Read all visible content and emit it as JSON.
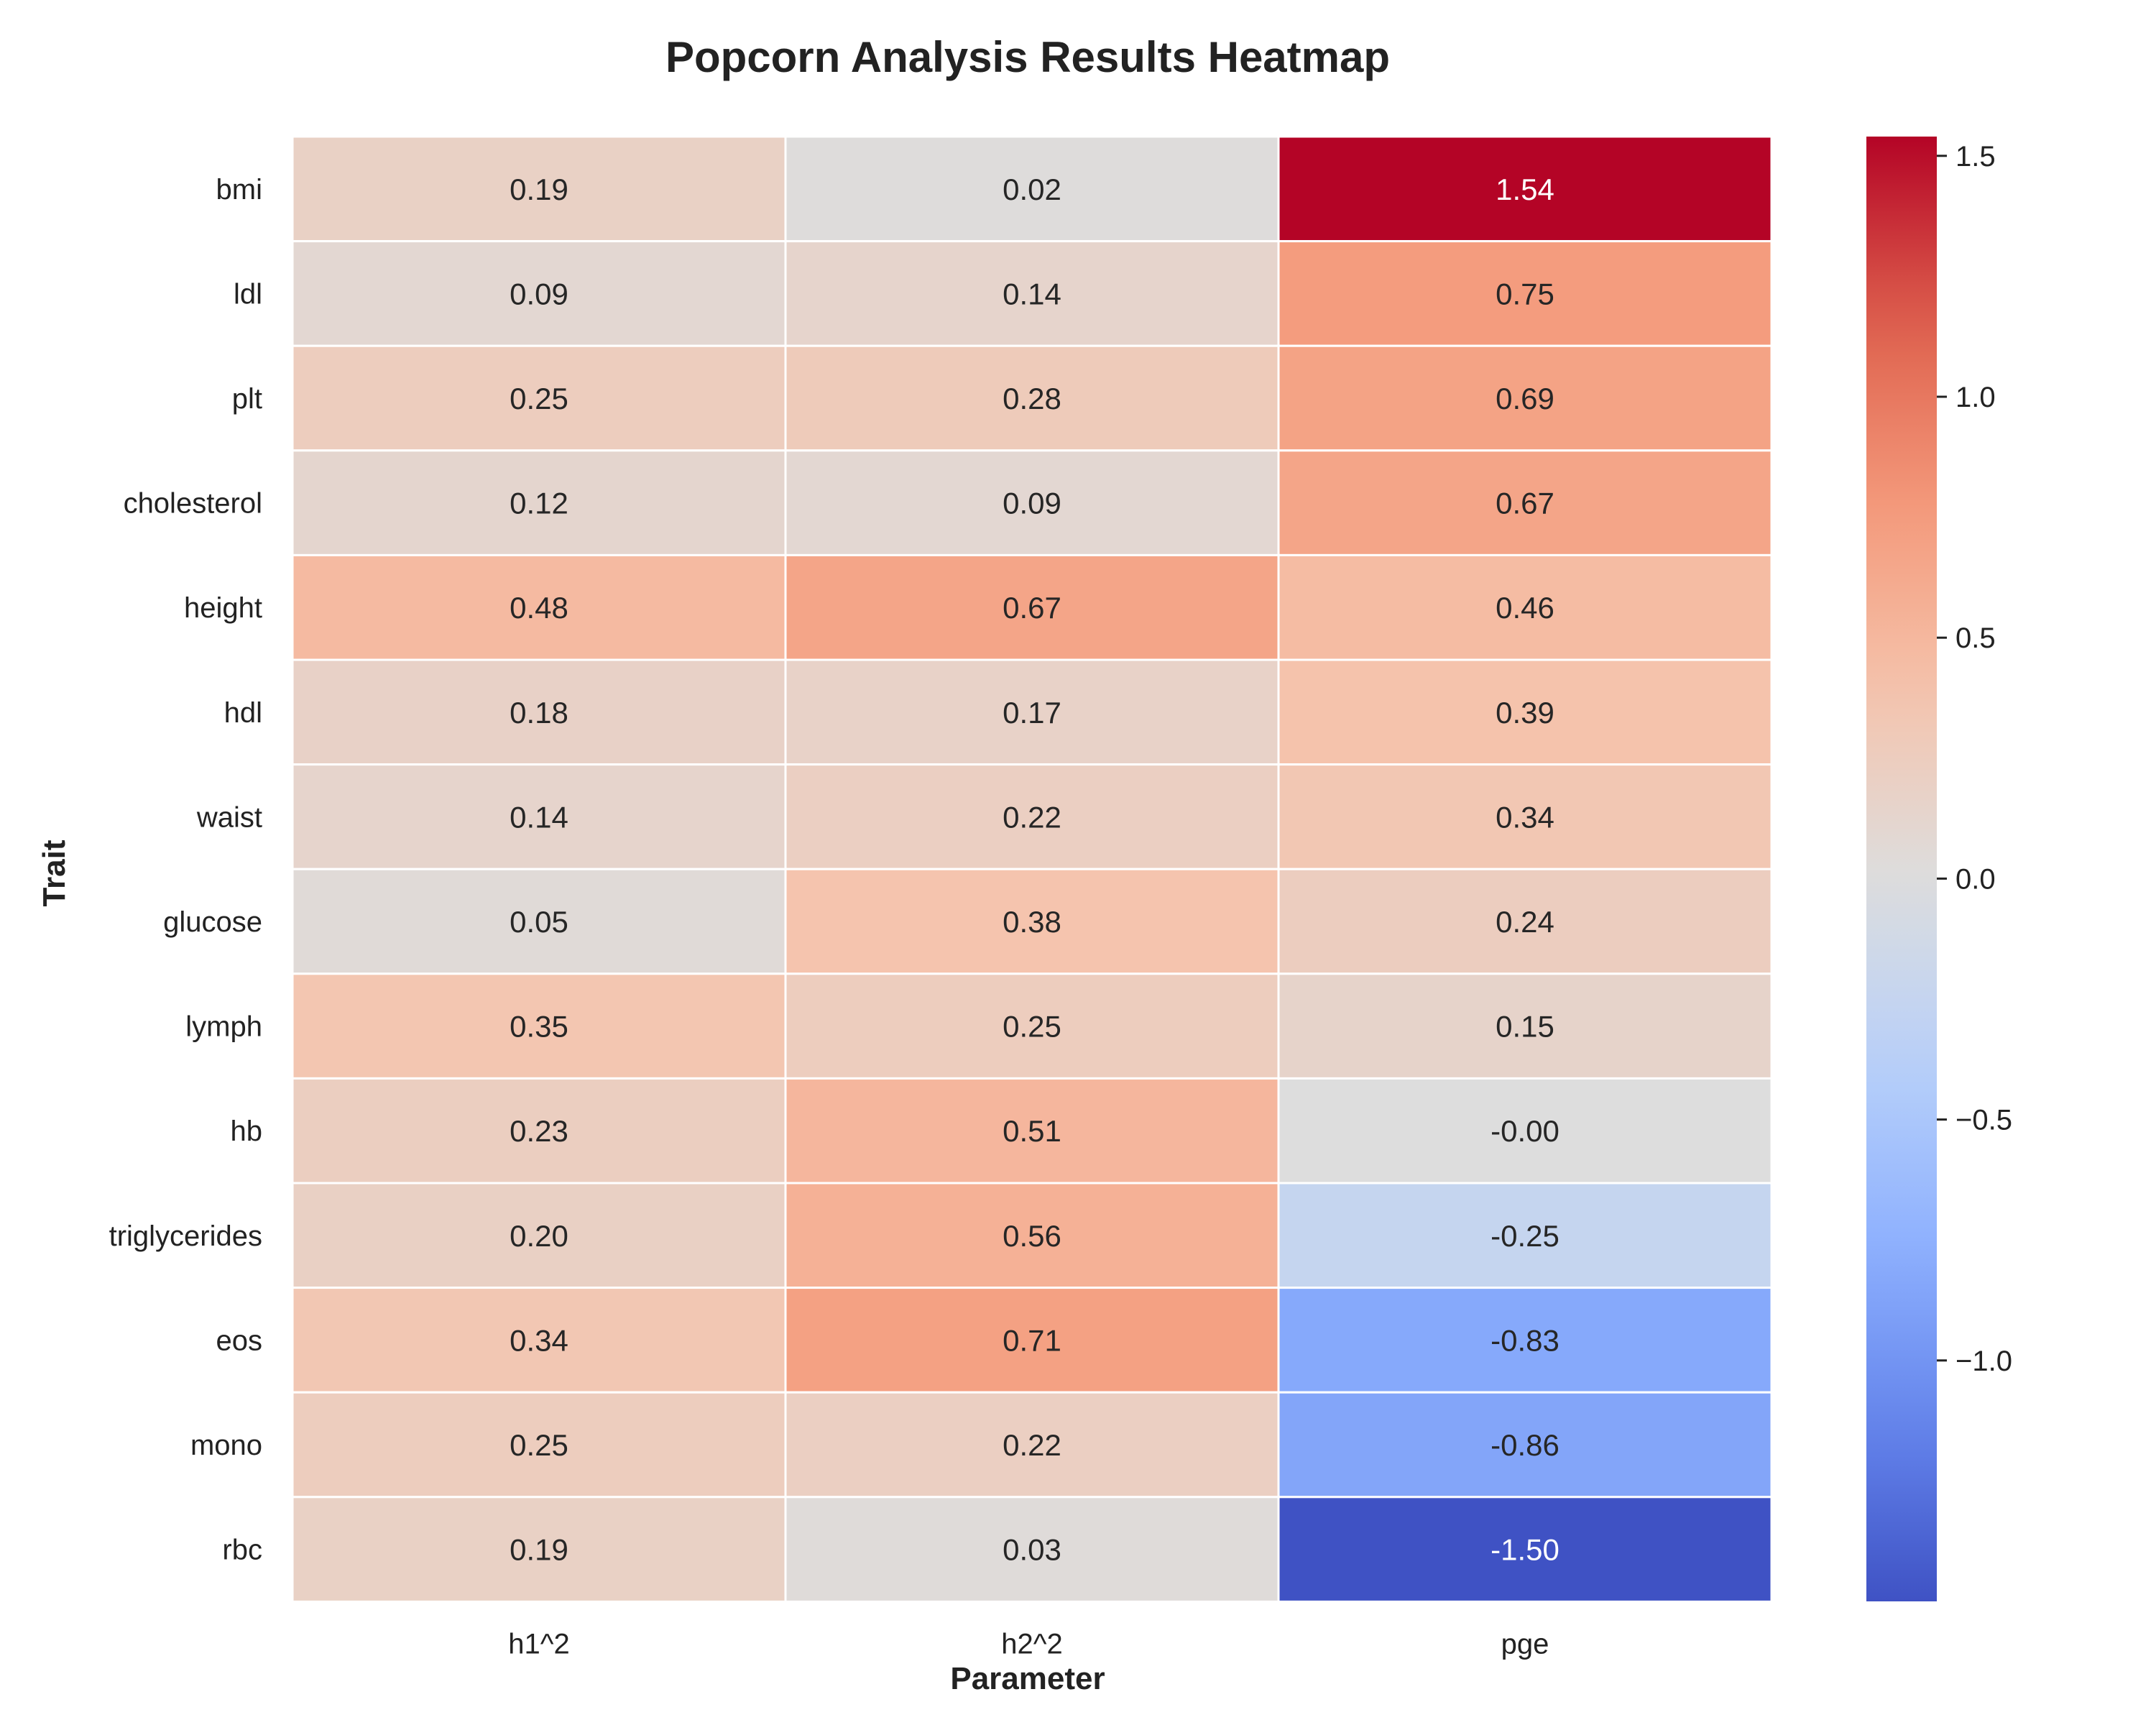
{
  "chart_data": {
    "type": "heatmap",
    "title": "Popcorn Analysis Results Heatmap",
    "xlabel": "Parameter",
    "ylabel": "Trait",
    "columns": [
      "h1^2",
      "h2^2",
      "pge"
    ],
    "rows": [
      "bmi",
      "ldl",
      "plt",
      "cholesterol",
      "height",
      "hdl",
      "waist",
      "glucose",
      "lymph",
      "hb",
      "triglycerides",
      "eos",
      "mono",
      "rbc"
    ],
    "values": [
      [
        0.19,
        0.02,
        1.54
      ],
      [
        0.09,
        0.14,
        0.75
      ],
      [
        0.25,
        0.28,
        0.69
      ],
      [
        0.12,
        0.09,
        0.67
      ],
      [
        0.48,
        0.67,
        0.46
      ],
      [
        0.18,
        0.17,
        0.39
      ],
      [
        0.14,
        0.22,
        0.34
      ],
      [
        0.05,
        0.38,
        0.24
      ],
      [
        0.35,
        0.25,
        0.15
      ],
      [
        0.23,
        0.51,
        -0.0
      ],
      [
        0.2,
        0.56,
        -0.25
      ],
      [
        0.34,
        0.71,
        -0.83
      ],
      [
        0.25,
        0.22,
        -0.86
      ],
      [
        0.19,
        0.03,
        -1.5
      ]
    ],
    "value_labels": [
      [
        "0.19",
        "0.02",
        "1.54"
      ],
      [
        "0.09",
        "0.14",
        "0.75"
      ],
      [
        "0.25",
        "0.28",
        "0.69"
      ],
      [
        "0.12",
        "0.09",
        "0.67"
      ],
      [
        "0.48",
        "0.67",
        "0.46"
      ],
      [
        "0.18",
        "0.17",
        "0.39"
      ],
      [
        "0.14",
        "0.22",
        "0.34"
      ],
      [
        "0.05",
        "0.38",
        "0.24"
      ],
      [
        "0.35",
        "0.25",
        "0.15"
      ],
      [
        "0.23",
        "0.51",
        "-0.00"
      ],
      [
        "0.20",
        "0.56",
        "-0.25"
      ],
      [
        "0.34",
        "0.71",
        "-0.83"
      ],
      [
        "0.25",
        "0.22",
        "-0.86"
      ],
      [
        "0.19",
        "0.03",
        "-1.50"
      ]
    ],
    "colormap": "coolwarm",
    "vmin": -1.5,
    "vmax": 1.54,
    "colorbar_ticks": [
      1.5,
      1.0,
      0.5,
      0.0,
      -0.5,
      -1.0
    ],
    "colorbar_tick_labels": [
      "1.5",
      "1.0",
      "0.5",
      "0.0",
      "−0.5",
      "−1.0"
    ],
    "grid": false,
    "cell_border_color": "#ffffff"
  }
}
